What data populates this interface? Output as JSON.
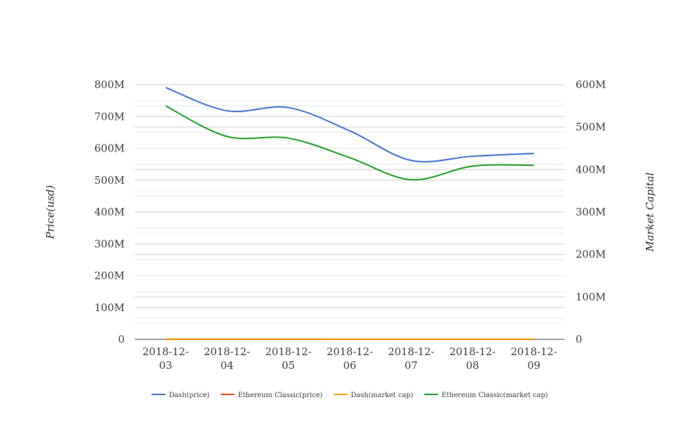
{
  "chart_data": {
    "type": "line",
    "title": "",
    "x": [
      "2018-12-03",
      "2018-12-04",
      "2018-12-05",
      "2018-12-06",
      "2018-12-07",
      "2018-12-08",
      "2018-12-09"
    ],
    "x_tick_labels": [
      [
        "2018-12-",
        "03"
      ],
      [
        "2018-12-",
        "04"
      ],
      [
        "2018-12-",
        "05"
      ],
      [
        "2018-12-",
        "06"
      ],
      [
        "2018-12-",
        "07"
      ],
      [
        "2018-12-",
        "08"
      ],
      [
        "2018-12-",
        "09"
      ]
    ],
    "ylabel": "Price(usd)",
    "y2label": "Market Capital",
    "ylim": [
      0,
      800000000
    ],
    "y2lim": [
      0,
      600000000
    ],
    "y_ticks": [
      "0",
      "100M",
      "200M",
      "300M",
      "400M",
      "500M",
      "600M",
      "700M",
      "800M"
    ],
    "y2_ticks": [
      "0",
      "100M",
      "200M",
      "300M",
      "400M",
      "500M",
      "600M"
    ],
    "grid": true,
    "legend_position": "bottom",
    "series": [
      {
        "name": "Dash(price)",
        "axis": "left",
        "color": "#3366cc",
        "values": [
          791000000,
          718000000,
          728000000,
          655000000,
          562000000,
          575000000,
          584000000
        ]
      },
      {
        "name": "Ethereum Classic(price)",
        "axis": "left",
        "color": "#dc3912",
        "values": [
          4,
          4,
          4,
          4,
          3,
          4,
          4
        ]
      },
      {
        "name": "Dash(market cap)",
        "axis": "right",
        "color": "#ff9900",
        "values": [
          600000,
          550000,
          560000,
          500000,
          430000,
          440000,
          450000
        ]
      },
      {
        "name": "Ethereum Classic(market cap)",
        "axis": "right",
        "color": "#109618",
        "values": [
          550000000,
          478000000,
          474000000,
          428000000,
          376000000,
          408000000,
          410000000
        ]
      }
    ]
  }
}
